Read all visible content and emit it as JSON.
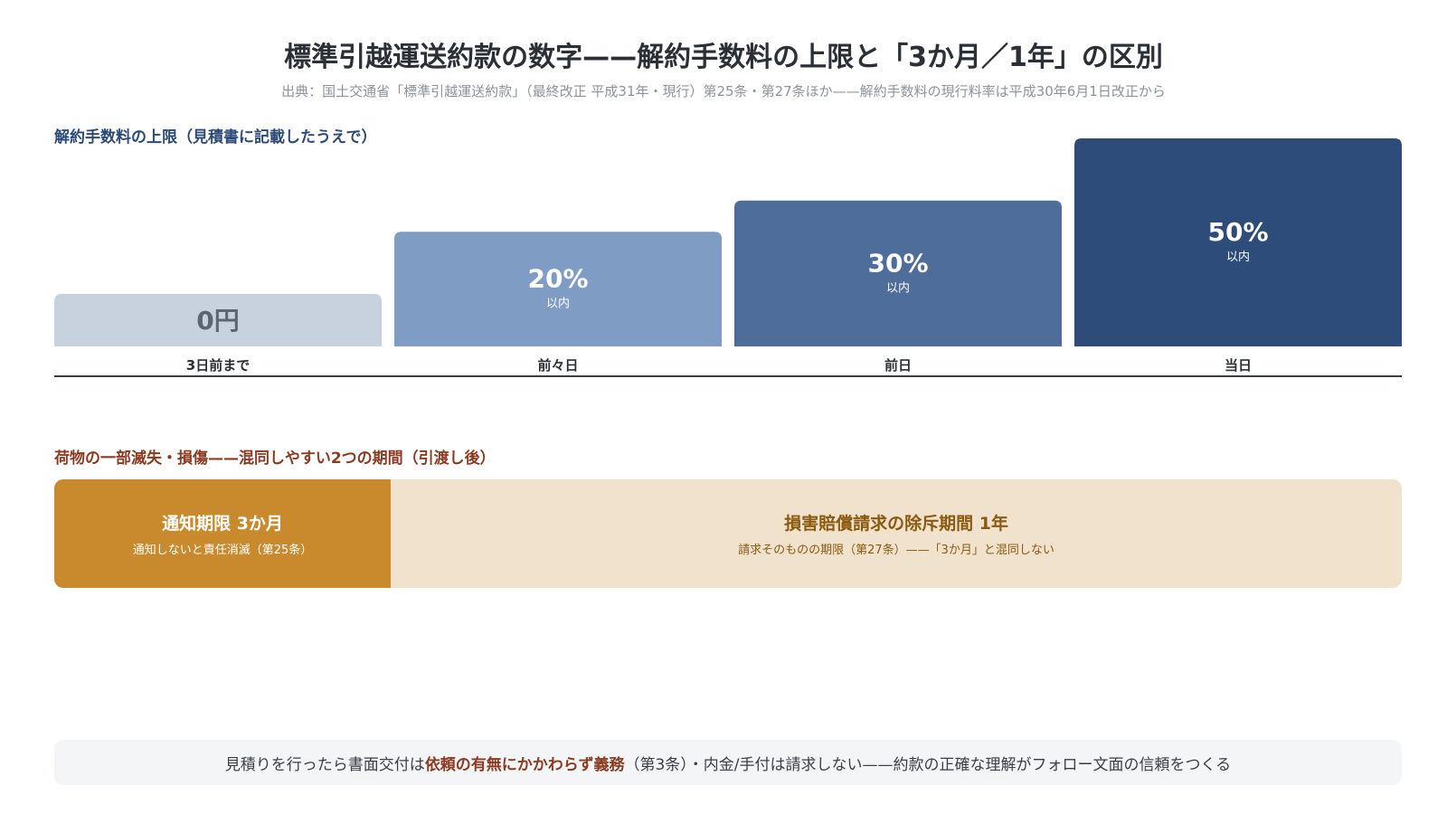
{
  "header": {
    "title": "標準引越運送約款の数字——解約手数料の上限と「3か月／1年」の区別",
    "subtitle": "出典：国土交通省「標準引越運送約款」（最終改正 平成31年・現行）第25条・第27条ほか——解約手数料の現行料率は平成30年6月1日改正から"
  },
  "fee_section": {
    "label": "解約手数料の上限（見積書に記載したうえで）"
  },
  "chart_data": {
    "type": "bar",
    "categories": [
      "3日前まで",
      "前々日",
      "前日",
      "当日"
    ],
    "values": [
      0,
      20,
      30,
      50
    ],
    "value_labels": [
      "0円",
      "20%",
      "30%",
      "50%"
    ],
    "value_sublabels": [
      "",
      "以内",
      "以内",
      "以内"
    ],
    "unit": "%",
    "colors": [
      "#c8d2de",
      "#7f9cc4",
      "#4e6d9b",
      "#2d4c7a"
    ],
    "label_colors": [
      "#5c6673",
      "#ffffff",
      "#ffffff",
      "#ffffff"
    ],
    "ylim": [
      0,
      50
    ],
    "grid": false,
    "legend": "none"
  },
  "period_section": {
    "label": "荷物の一部滅失・損傷——混同しやすい2つの期間（引渡し後）",
    "notice": {
      "title": "通知期限 3か月",
      "sub": "通知しないと責任消滅（第25条）"
    },
    "claim": {
      "title": "損害賠償請求の除斥期間 1年",
      "sub": "請求そのものの期限（第27条）——「3か月」と混同しない"
    }
  },
  "footer": {
    "pre": "見積りを行ったら書面交付は",
    "emphasis": "依頼の有無にかかわらず義務",
    "post": "（第3条）・内金/手付は請求しない——約款の正確な理解がフォロー文面の信頼をつくる"
  }
}
